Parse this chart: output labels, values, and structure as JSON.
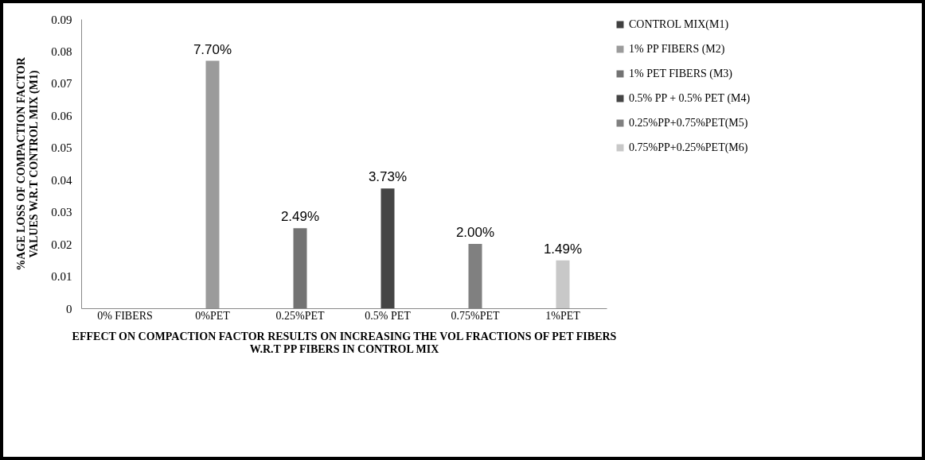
{
  "chart_data": {
    "type": "bar",
    "xlabel": "EFFECT ON COMPACTION FACTOR RESULTS  ON INCREASING THE VOL FRACTIONS OF PET FIBERS W.R.T PP FIBERS IN CONTROL MIX",
    "ylabel": "%AGE LOSS OF COMPACTION FACTOR VALUES W.R.T CONTROL MIX (M1)",
    "categories": [
      "0% FIBERS",
      "0%PET",
      "0.25%PET",
      "0.5% PET",
      "0.75%PET",
      "1%PET"
    ],
    "series": [
      {
        "name": "CONTROL MIX(M1)",
        "color": "#404040",
        "values": [
          0,
          null,
          null,
          null,
          null,
          null
        ],
        "value_labels": [
          null,
          null,
          null,
          null,
          null,
          null
        ]
      },
      {
        "name": "1% PP FIBERS (M2)",
        "color": "#9b9b9b",
        "values": [
          null,
          0.077,
          null,
          null,
          null,
          null
        ],
        "value_labels": [
          null,
          "7.70%",
          null,
          null,
          null,
          null
        ]
      },
      {
        "name": "1% PET FIBERS (M3)",
        "color": "#737373",
        "values": [
          null,
          null,
          0.0249,
          null,
          null,
          null
        ],
        "value_labels": [
          null,
          null,
          "2.49%",
          null,
          null,
          null
        ]
      },
      {
        "name": "0.5% PP + 0.5% PET (M4)",
        "color": "#454545",
        "values": [
          null,
          null,
          null,
          0.0373,
          null,
          null
        ],
        "value_labels": [
          null,
          null,
          null,
          "3.73%",
          null,
          null
        ]
      },
      {
        "name": "0.25%PP+0.75%PET(M5)",
        "color": "#808080",
        "values": [
          null,
          null,
          null,
          null,
          0.02,
          null
        ],
        "value_labels": [
          null,
          null,
          null,
          null,
          "2.00%",
          null
        ]
      },
      {
        "name": "0.75%PP+0.25%PET(M6)",
        "color": "#c8c8c8",
        "values": [
          null,
          null,
          null,
          null,
          null,
          0.0149
        ],
        "value_labels": [
          null,
          null,
          null,
          null,
          null,
          "1.49%"
        ]
      }
    ],
    "ylim": [
      0,
      0.09
    ],
    "yticks": [
      0,
      0.01,
      0.02,
      0.03,
      0.04,
      0.05,
      0.06,
      0.07,
      0.08,
      0.09
    ],
    "grid": false,
    "legend": "right"
  }
}
